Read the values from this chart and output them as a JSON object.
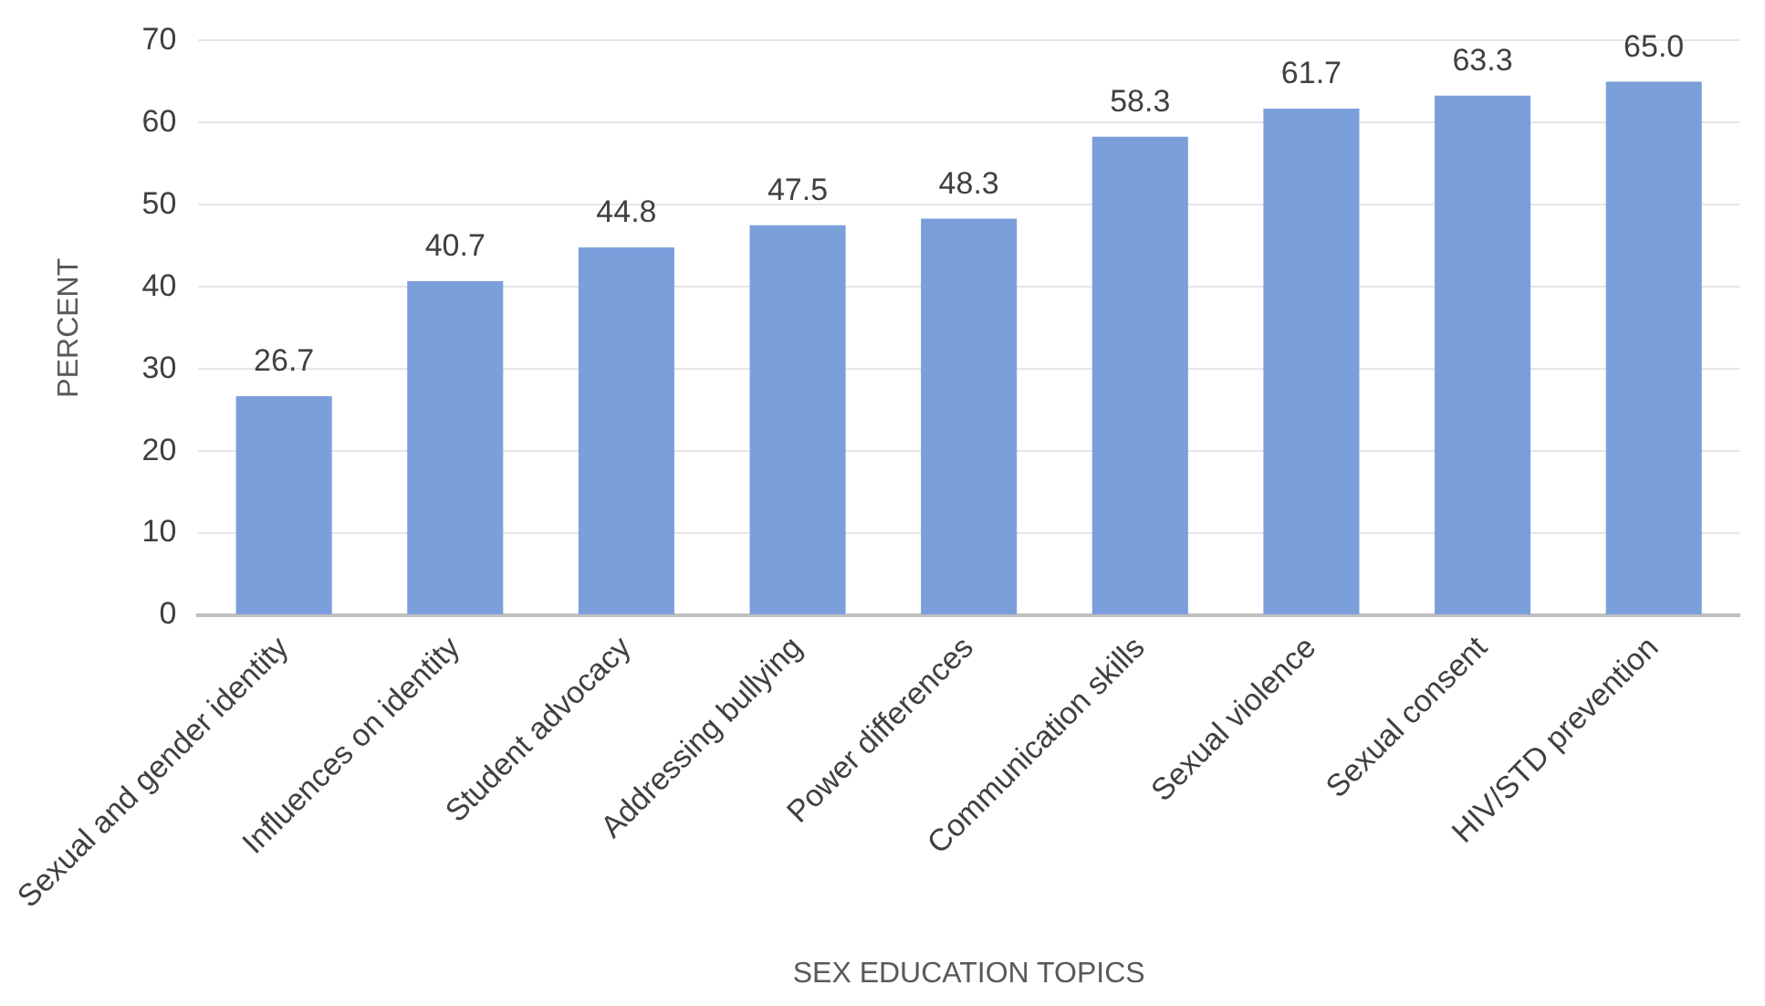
{
  "chart_data": {
    "type": "bar",
    "xlabel": "SEX EDUCATION TOPICS",
    "ylabel": "PERCENT",
    "categories": [
      "Sexual and gender identity",
      "Influences on identity",
      "Student advocacy",
      "Addressing bullying",
      "Power differences",
      "Communication skills",
      "Sexual violence",
      "Sexual consent",
      "HIV/STD prevention"
    ],
    "values": [
      26.7,
      40.7,
      44.8,
      47.5,
      48.3,
      58.3,
      61.7,
      63.3,
      65.0
    ],
    "value_labels": [
      "26.7",
      "40.7",
      "44.8",
      "47.5",
      "48.3",
      "58.3",
      "61.7",
      "63.3",
      "65.0"
    ],
    "color": "#7b9fdb",
    "ylim": [
      0,
      70
    ],
    "yticks": [
      0,
      10,
      20,
      30,
      40,
      50,
      60,
      70
    ],
    "grid": "y",
    "legend": false
  }
}
